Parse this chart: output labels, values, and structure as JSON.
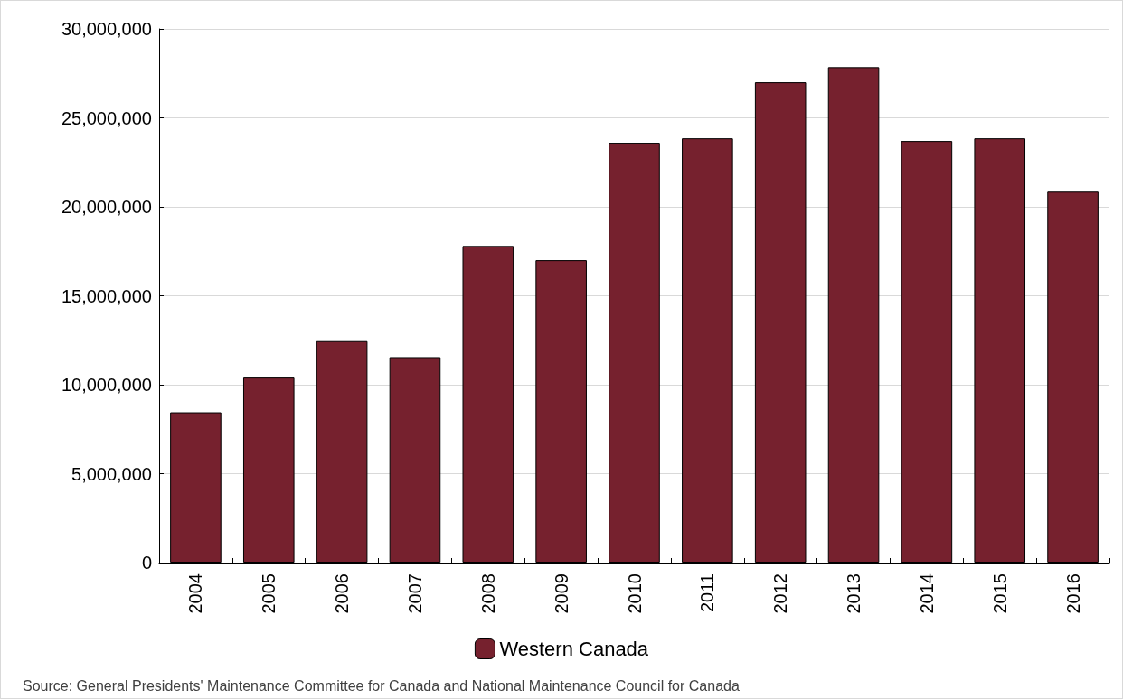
{
  "chart_data": {
    "type": "bar",
    "categories": [
      "2004",
      "2005",
      "2006",
      "2007",
      "2008",
      "2009",
      "2010",
      "2011",
      "2012",
      "2013",
      "2014",
      "2015",
      "2016"
    ],
    "series": [
      {
        "name": "Western Canada",
        "color": "#76212e",
        "values": [
          8450000,
          10400000,
          12450000,
          11550000,
          17800000,
          17000000,
          23600000,
          23850000,
          27000000,
          27850000,
          23700000,
          23850000,
          20850000
        ]
      }
    ],
    "ylim": [
      0,
      30000000
    ],
    "yticks": [
      0,
      {
        "value": 5000000,
        "label": "5,000,000"
      },
      {
        "value": 10000000,
        "label": "10,000,000"
      },
      {
        "value": 15000000,
        "label": "15,000,000"
      },
      {
        "value": 20000000,
        "label": "20,000,000"
      },
      {
        "value": 25000000,
        "label": "25,000,000"
      },
      {
        "value": 30000000,
        "label": "30,000,000"
      }
    ],
    "grid": "y",
    "legend": "bottom",
    "annotations": [
      "Source: General Presidents' Maintenance Committee for Canada and National Maintenance Council for Canada"
    ]
  }
}
